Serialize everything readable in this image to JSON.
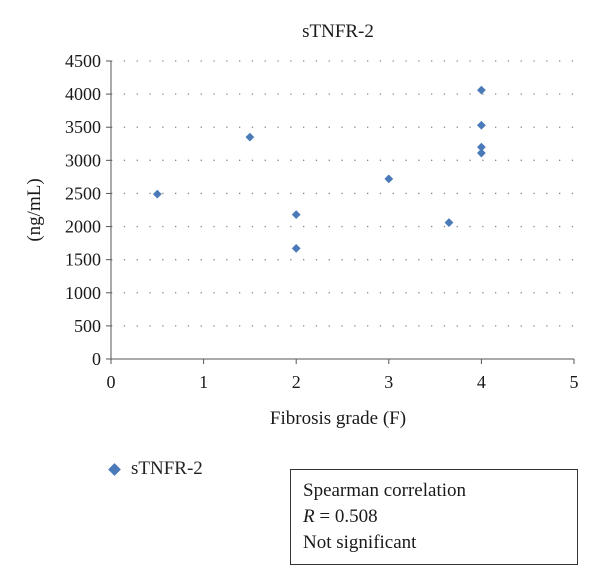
{
  "chart_data": {
    "type": "scatter",
    "title": "sTNFR-2",
    "xlabel": "Fibrosis grade (F)",
    "ylabel": "(ng/mL)",
    "xlim": [
      0,
      5
    ],
    "ylim": [
      0,
      4500
    ],
    "xticks": [
      "0",
      "1",
      "2",
      "3",
      "4",
      "5"
    ],
    "yticks": [
      "0",
      "500",
      "1000",
      "1500",
      "2000",
      "2500",
      "3000",
      "3500",
      "4000",
      "4500"
    ],
    "grid": "dotted horizontal",
    "legend_position": "bottom-left",
    "series": [
      {
        "name": "sTNFR-2",
        "color": "#4a7ab8",
        "marker": "diamond",
        "points": [
          {
            "x": 0.5,
            "y": 2490
          },
          {
            "x": 1.5,
            "y": 3350
          },
          {
            "x": 2.0,
            "y": 2180
          },
          {
            "x": 2.0,
            "y": 1670
          },
          {
            "x": 3.0,
            "y": 2720
          },
          {
            "x": 3.65,
            "y": 2060
          },
          {
            "x": 4.0,
            "y": 4060
          },
          {
            "x": 4.0,
            "y": 3530
          },
          {
            "x": 4.0,
            "y": 3200
          },
          {
            "x": 4.0,
            "y": 3110
          }
        ]
      }
    ]
  },
  "legend": {
    "label": "sTNFR-2",
    "marker_color": "#4a7ab8"
  },
  "stats": {
    "line1": "Spearman correlation",
    "r_symbol": "R",
    "r_value": " = 0.508",
    "line3": "Not significant"
  }
}
